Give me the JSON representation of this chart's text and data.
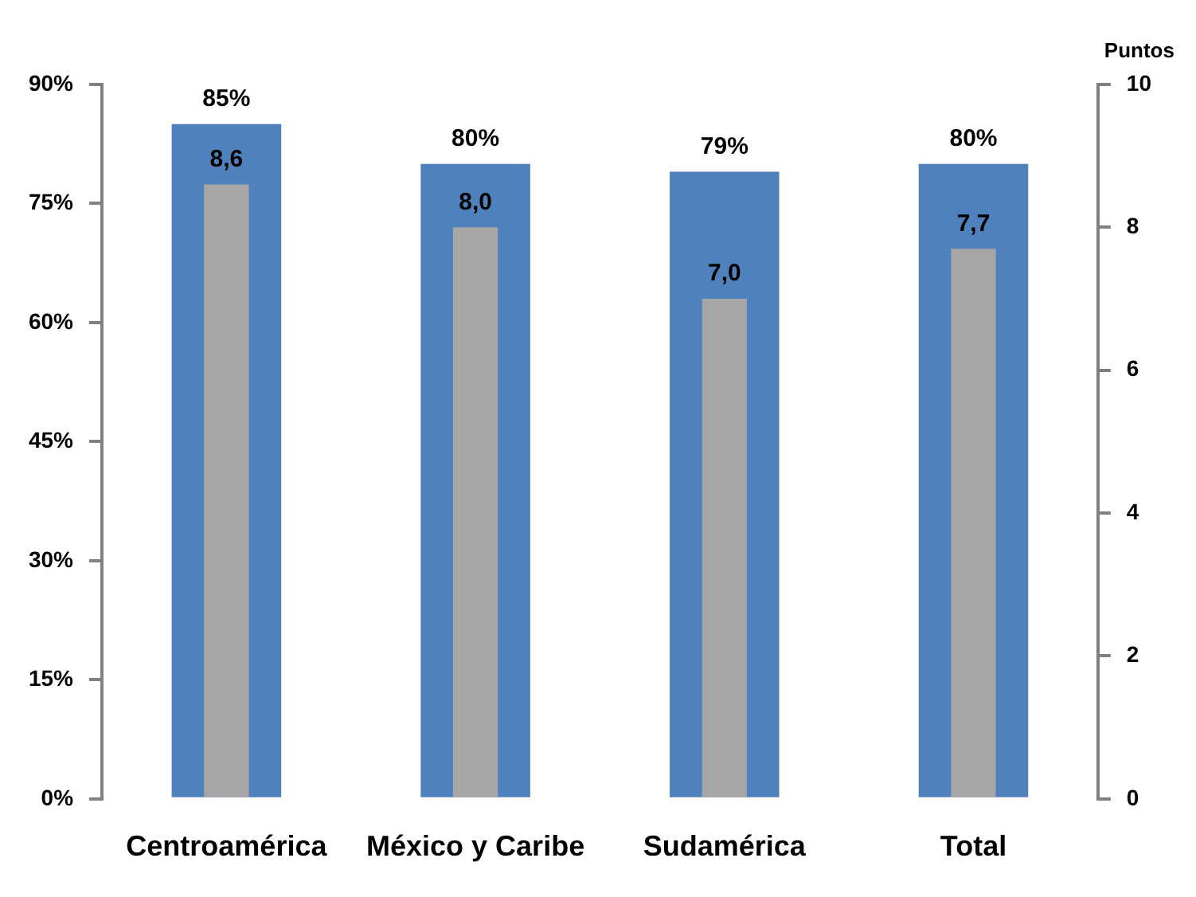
{
  "chart_data": {
    "type": "bar",
    "y2label": "Puntos",
    "categories": [
      "Centroamérica",
      "México y Caribe",
      "Sudamérica",
      "Total"
    ],
    "series": [
      {
        "color": "#4f81bd",
        "values": [
          85,
          80,
          79,
          80
        ],
        "value_labels": [
          "85%",
          "80%",
          "79%",
          "80%"
        ]
      },
      {
        "color": "#a6a6a6",
        "axis": "y2",
        "values": [
          8.6,
          8.0,
          7.0,
          7.7
        ],
        "value_labels": [
          "8,6",
          "8,0",
          "7,0",
          "7,7"
        ]
      }
    ],
    "ylim": [
      0,
      90
    ],
    "yticks": [
      {
        "value": 0,
        "label": "0%"
      },
      {
        "value": 15,
        "label": "15%"
      },
      {
        "value": 30,
        "label": "30%"
      },
      {
        "value": 45,
        "label": "45%"
      },
      {
        "value": 60,
        "label": "60%"
      },
      {
        "value": 75,
        "label": "75%"
      },
      {
        "value": 90,
        "label": "90%"
      }
    ],
    "y2lim": [
      0,
      10
    ],
    "y2ticks": [
      0,
      2,
      4,
      6,
      8,
      10
    ]
  }
}
